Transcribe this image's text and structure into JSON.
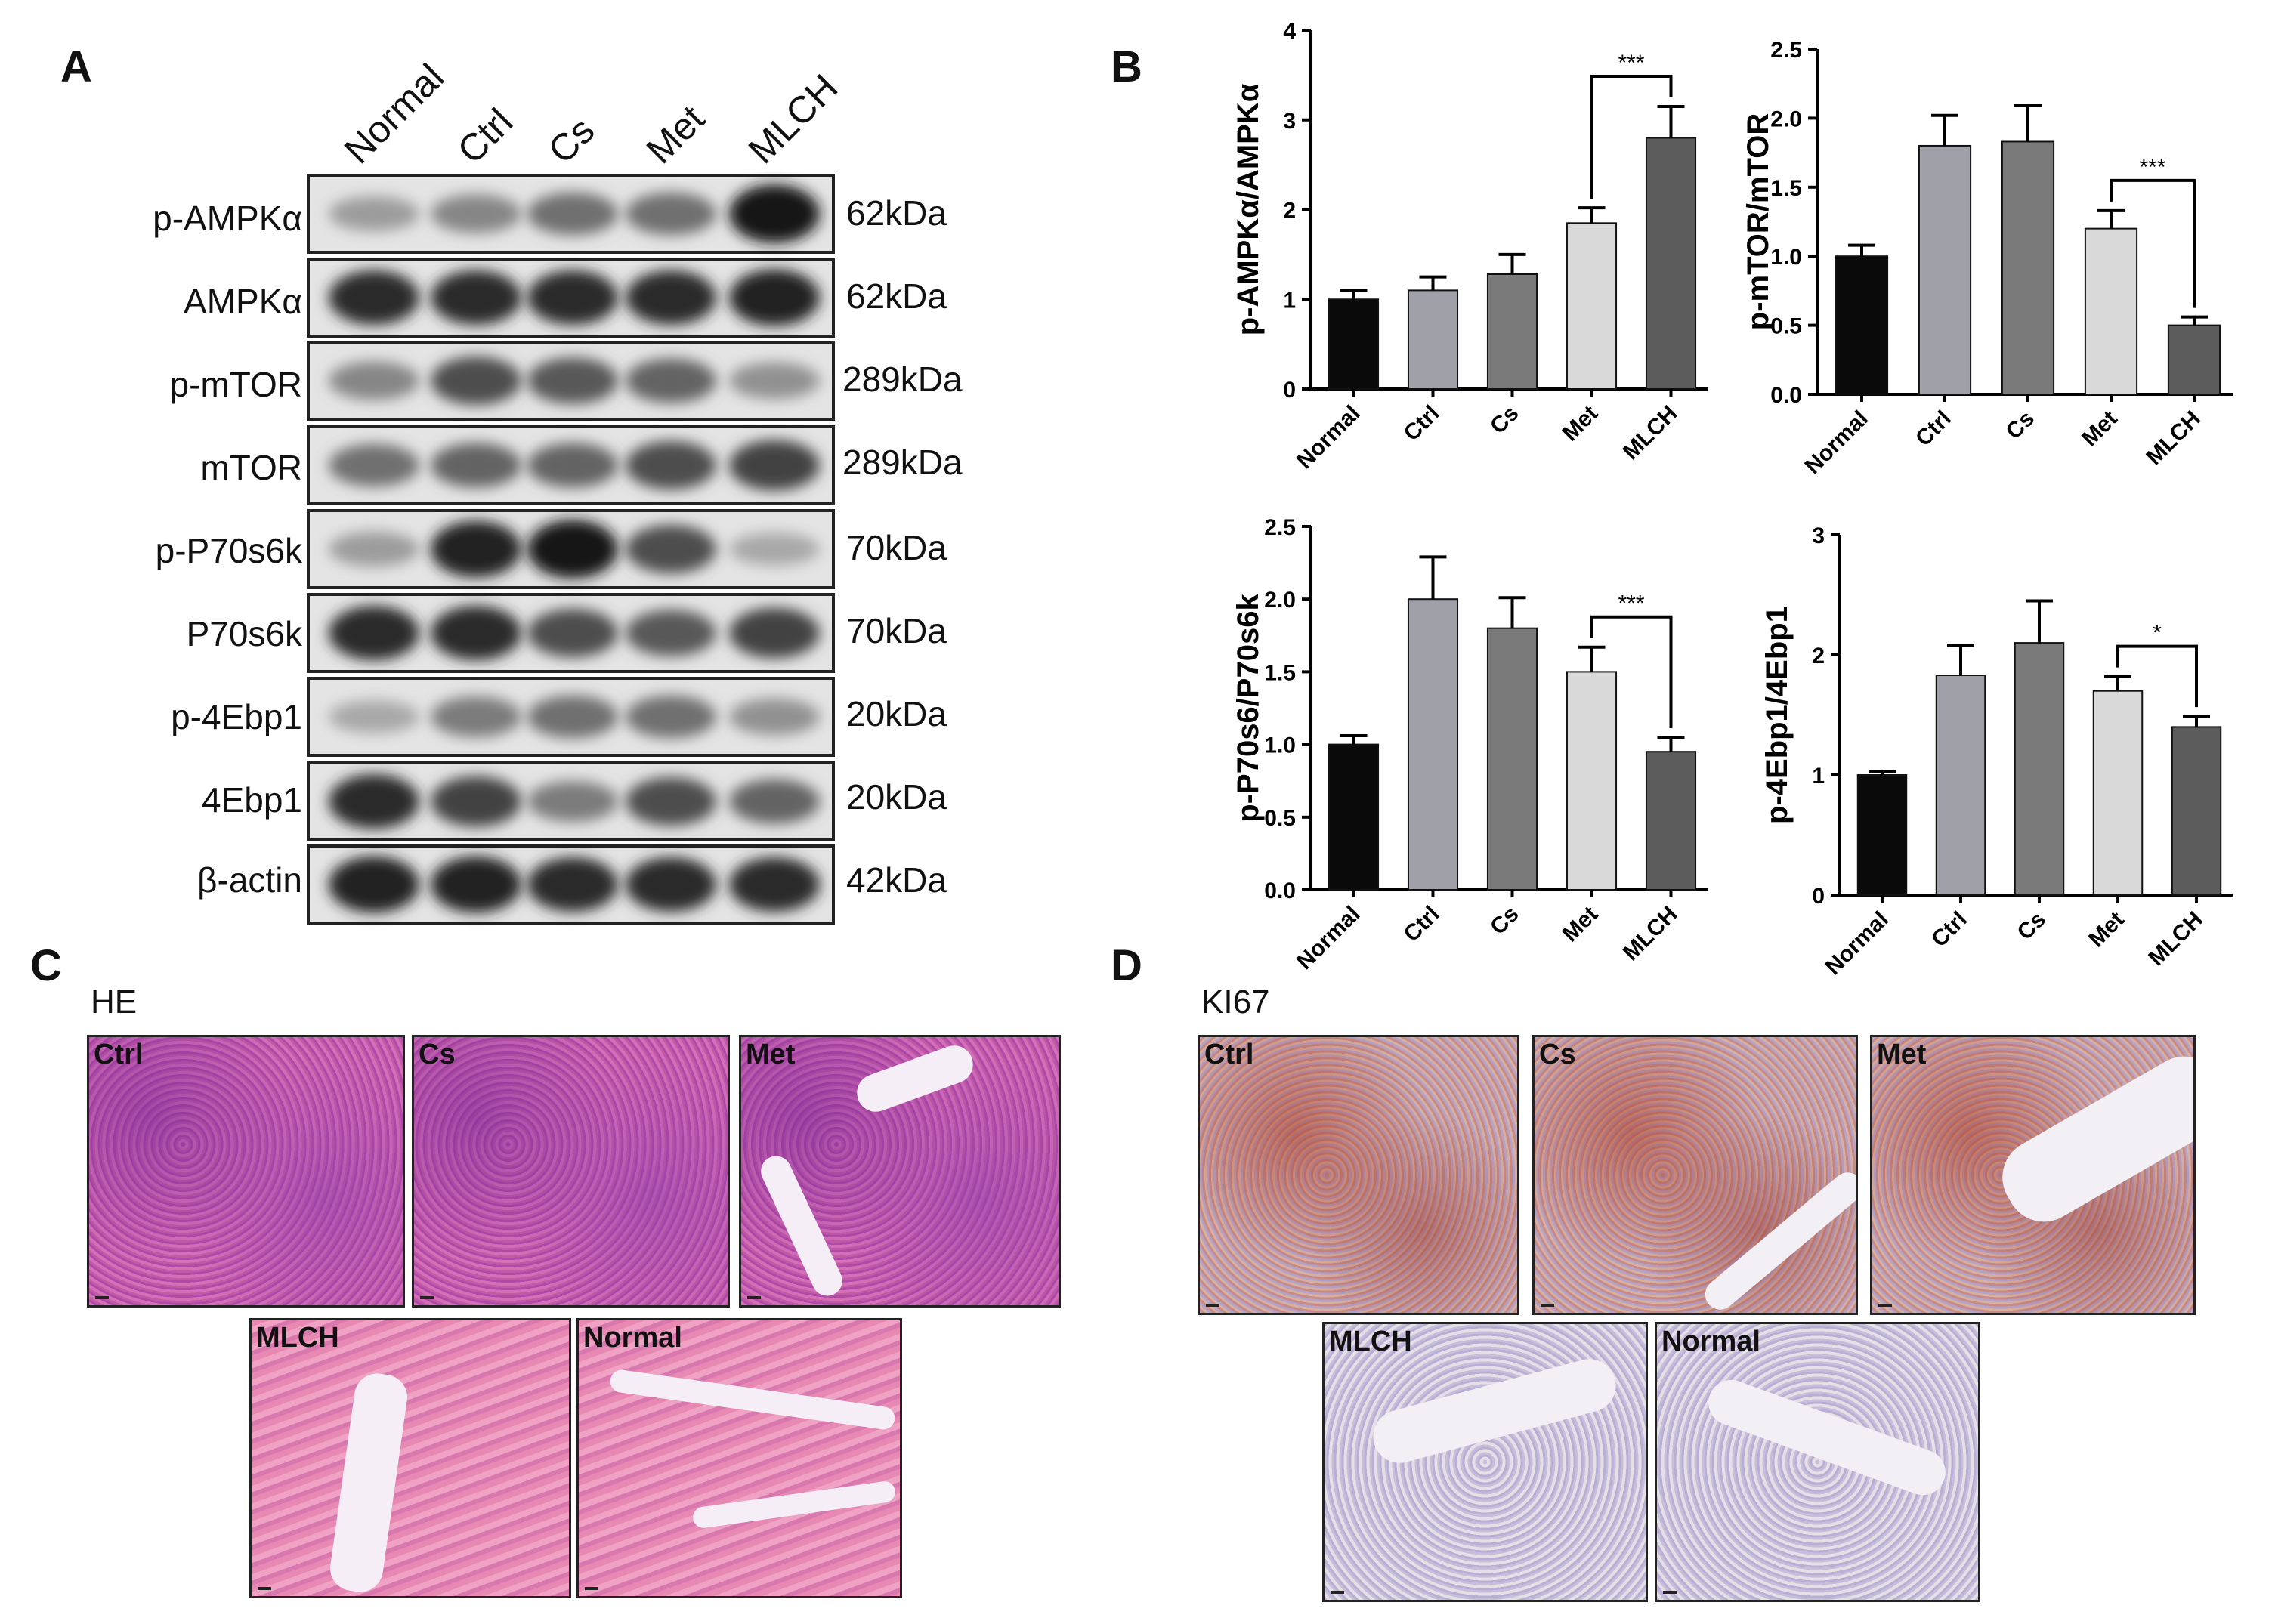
{
  "panels": {
    "a": "A",
    "b": "B",
    "c": "C",
    "d": "D"
  },
  "western_blot": {
    "lanes": [
      "Normal",
      "Ctrl",
      "Cs",
      "Met",
      "MLCH"
    ],
    "rows": [
      {
        "protein": "p-AMPKα",
        "size": "62kDa"
      },
      {
        "protein": "AMPKα",
        "size": "62kDa"
      },
      {
        "protein": "p-mTOR",
        "size": "289kDa"
      },
      {
        "protein": "mTOR",
        "size": "289kDa"
      },
      {
        "protein": "p-P70s6k",
        "size": "70kDa"
      },
      {
        "protein": "P70s6k",
        "size": "70kDa"
      },
      {
        "protein": "p-4Ebp1",
        "size": "20kDa"
      },
      {
        "protein": "4Ebp1",
        "size": "20kDa"
      },
      {
        "protein": "β-actin",
        "size": "42kDa"
      }
    ],
    "band_intensity": [
      [
        0.35,
        0.45,
        0.55,
        0.55,
        0.95
      ],
      [
        0.85,
        0.85,
        0.85,
        0.85,
        0.9
      ],
      [
        0.45,
        0.7,
        0.65,
        0.6,
        0.4
      ],
      [
        0.55,
        0.6,
        0.6,
        0.7,
        0.75
      ],
      [
        0.35,
        0.9,
        0.95,
        0.7,
        0.3
      ],
      [
        0.85,
        0.85,
        0.7,
        0.65,
        0.75
      ],
      [
        0.3,
        0.5,
        0.55,
        0.55,
        0.4
      ],
      [
        0.85,
        0.75,
        0.5,
        0.7,
        0.6
      ],
      [
        0.9,
        0.9,
        0.85,
        0.85,
        0.85
      ]
    ]
  },
  "chart_data": [
    {
      "type": "bar",
      "ylabel": "p-AMPKα/AMPKα",
      "categories": [
        "Normal",
        "Ctrl",
        "Cs",
        "Met",
        "MLCH"
      ],
      "values": [
        1.0,
        1.1,
        1.28,
        1.85,
        2.8
      ],
      "errors": [
        0.1,
        0.15,
        0.22,
        0.17,
        0.35
      ],
      "colors": [
        "#0a0a0a",
        "#a0a0a8",
        "#7a7a7a",
        "#d9d9d9",
        "#5c5c5c"
      ],
      "ylim": [
        0,
        4
      ],
      "yticks": [
        "0",
        "1",
        "2",
        "3",
        "4"
      ],
      "yticks_values": [
        0,
        1,
        2,
        3,
        4
      ],
      "significance": {
        "from": 3,
        "to": 4,
        "label": "***"
      }
    },
    {
      "type": "bar",
      "ylabel": "p-mTOR/mTOR",
      "categories": [
        "Normal",
        "Ctrl",
        "Cs",
        "Met",
        "MLCH"
      ],
      "values": [
        1.0,
        1.8,
        1.83,
        1.2,
        0.5
      ],
      "errors": [
        0.08,
        0.22,
        0.26,
        0.13,
        0.06
      ],
      "colors": [
        "#0a0a0a",
        "#a0a0a8",
        "#7a7a7a",
        "#d9d9d9",
        "#5c5c5c"
      ],
      "ylim": [
        0,
        2.5
      ],
      "yticks": [
        "0.0",
        "0.5",
        "1.0",
        "1.5",
        "2.0",
        "2.5"
      ],
      "yticks_values": [
        0,
        0.5,
        1.0,
        1.5,
        2.0,
        2.5
      ],
      "significance": {
        "from": 3,
        "to": 4,
        "label": "***"
      }
    },
    {
      "type": "bar",
      "ylabel": "p-P70s6/P70s6k",
      "categories": [
        "Normal",
        "Ctrl",
        "Cs",
        "Met",
        "MLCH"
      ],
      "values": [
        1.0,
        2.0,
        1.8,
        1.5,
        0.95
      ],
      "errors": [
        0.06,
        0.29,
        0.21,
        0.17,
        0.1
      ],
      "colors": [
        "#0a0a0a",
        "#a0a0a8",
        "#7a7a7a",
        "#d9d9d9",
        "#5c5c5c"
      ],
      "ylim": [
        0,
        2.5
      ],
      "yticks": [
        "0.0",
        "0.5",
        "1.0",
        "1.5",
        "2.0",
        "2.5"
      ],
      "yticks_values": [
        0,
        0.5,
        1.0,
        1.5,
        2.0,
        2.5
      ],
      "significance": {
        "from": 3,
        "to": 4,
        "label": "***"
      }
    },
    {
      "type": "bar",
      "ylabel": "p-4Ebp1/4Ebp1",
      "categories": [
        "Normal",
        "Ctrl",
        "Cs",
        "Met",
        "MLCH"
      ],
      "values": [
        1.0,
        1.83,
        2.1,
        1.7,
        1.4
      ],
      "errors": [
        0.03,
        0.25,
        0.35,
        0.12,
        0.09
      ],
      "colors": [
        "#0a0a0a",
        "#a0a0a8",
        "#7a7a7a",
        "#d9d9d9",
        "#5c5c5c"
      ],
      "ylim": [
        0,
        3
      ],
      "yticks": [
        "0",
        "1",
        "2",
        "3"
      ],
      "yticks_values": [
        0,
        1,
        2,
        3
      ],
      "significance": {
        "from": 3,
        "to": 4,
        "label": "*"
      }
    }
  ],
  "histology_he": {
    "title": "HE",
    "images": [
      "Ctrl",
      "Cs",
      "Met",
      "MLCH",
      "Normal"
    ]
  },
  "histology_ki67": {
    "title": "KI67",
    "images": [
      "Ctrl",
      "Cs",
      "Met",
      "MLCH",
      "Normal"
    ]
  }
}
